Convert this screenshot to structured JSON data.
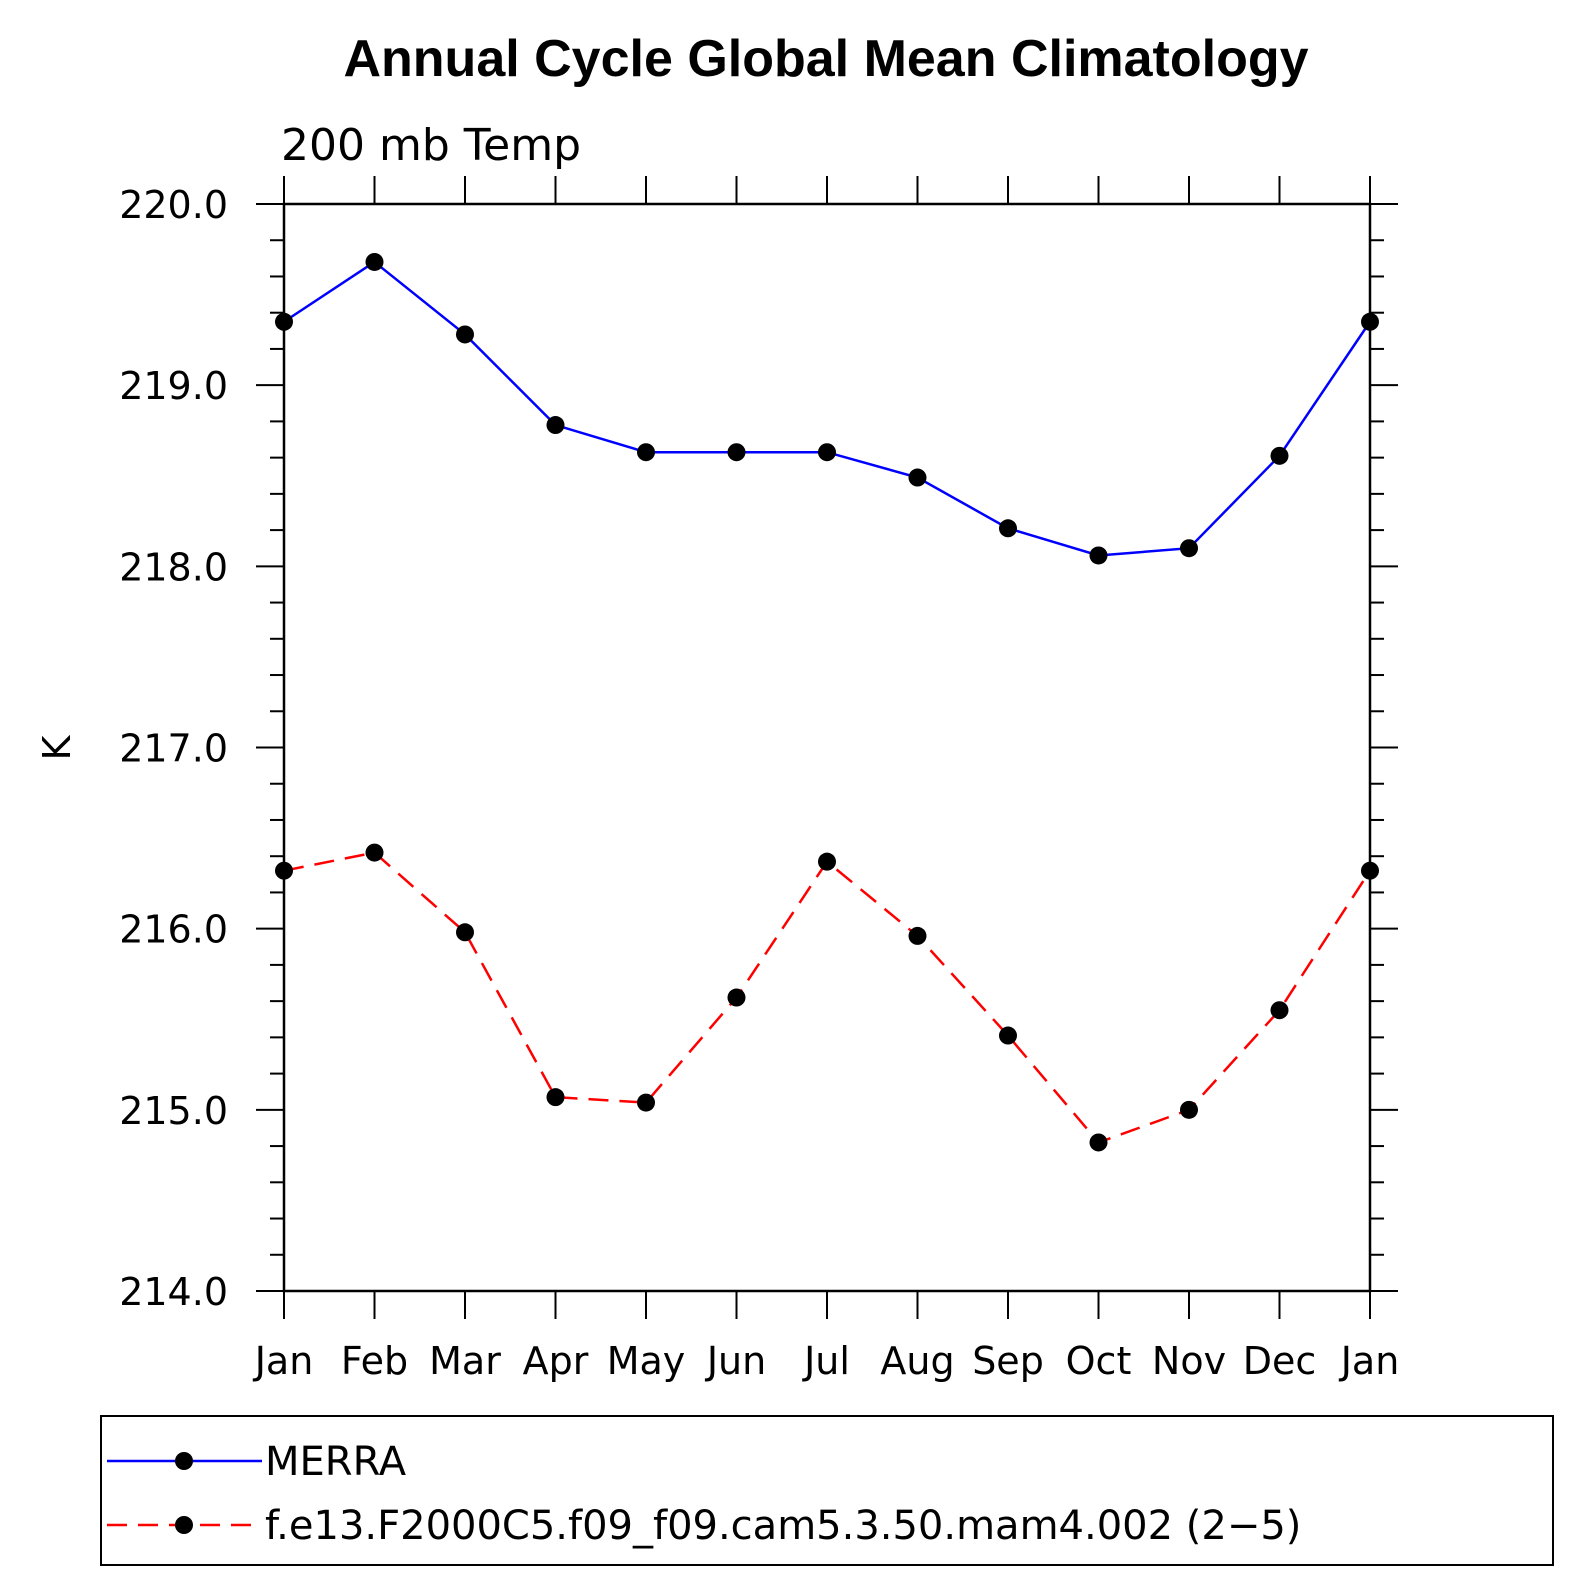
{
  "chart_data": {
    "type": "line",
    "title": "Annual Cycle Global Mean Climatology",
    "subtitle": "200 mb Temp",
    "xlabel": "",
    "ylabel": "K",
    "categories": [
      "Jan",
      "Feb",
      "Mar",
      "Apr",
      "May",
      "Jun",
      "Jul",
      "Aug",
      "Sep",
      "Oct",
      "Nov",
      "Dec",
      "Jan"
    ],
    "ylim": [
      214.0,
      220.0
    ],
    "yticks": [
      "214.0",
      "215.0",
      "216.0",
      "217.0",
      "218.0",
      "219.0",
      "220.0"
    ],
    "grid": false,
    "legend_position": "bottom",
    "series": [
      {
        "name": "MERRA",
        "color": "#0000ff",
        "dash": "solid",
        "values": [
          219.35,
          219.68,
          219.28,
          218.78,
          218.63,
          218.63,
          218.63,
          218.49,
          218.21,
          218.06,
          218.1,
          218.61,
          219.35
        ]
      },
      {
        "name": "f.e13.F2000C5.f09_f09.cam5.3.50.mam4.002 (2−5)",
        "color": "#ff0000",
        "dash": "dashed",
        "values": [
          216.32,
          216.42,
          215.98,
          215.07,
          215.04,
          215.62,
          216.37,
          215.96,
          215.41,
          214.82,
          215.0,
          215.55,
          216.32
        ]
      }
    ]
  }
}
